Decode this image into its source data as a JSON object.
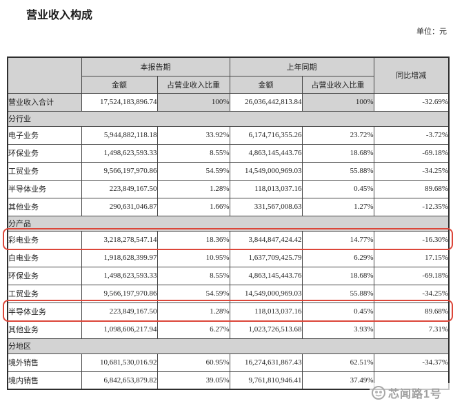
{
  "page": {
    "title": "营业收入构成",
    "unit_label": "单位：元"
  },
  "table": {
    "header": {
      "corner": "",
      "current_period": "本报告期",
      "prior_period": "上年同期",
      "yoy": "同比增减",
      "amount": "金额",
      "share": "占营业收入比重"
    },
    "rows": [
      {
        "type": "total",
        "label": "营业收入合计",
        "amount_cur": "17,524,183,896.74",
        "share_cur": "100%",
        "amount_prior": "26,036,442,813.84",
        "share_prior": "100%",
        "yoy": "-32.69%"
      },
      {
        "type": "section",
        "label": "分行业"
      },
      {
        "type": "data",
        "label": "电子业务",
        "amount_cur": "5,944,882,118.18",
        "share_cur": "33.92%",
        "amount_prior": "6,174,716,355.26",
        "share_prior": "23.72%",
        "yoy": "-3.72%"
      },
      {
        "type": "data",
        "label": "环保业务",
        "amount_cur": "1,498,623,593.33",
        "share_cur": "8.55%",
        "amount_prior": "4,863,145,443.76",
        "share_prior": "18.68%",
        "yoy": "-69.18%"
      },
      {
        "type": "data",
        "label": "工贸业务",
        "amount_cur": "9,566,197,970.86",
        "share_cur": "54.59%",
        "amount_prior": "14,549,000,969.03",
        "share_prior": "55.88%",
        "yoy": "-34.25%"
      },
      {
        "type": "data",
        "label": "半导体业务",
        "amount_cur": "223,849,167.50",
        "share_cur": "1.28%",
        "amount_prior": "118,013,037.16",
        "share_prior": "0.45%",
        "yoy": "89.68%"
      },
      {
        "type": "data",
        "label": "其他业务",
        "amount_cur": "290,631,046.87",
        "share_cur": "1.66%",
        "amount_prior": "331,567,008.63",
        "share_prior": "1.27%",
        "yoy": "-12.35%"
      },
      {
        "type": "section",
        "label": "分产品"
      },
      {
        "type": "data",
        "highlight": true,
        "label": "彩电业务",
        "amount_cur": "3,218,278,547.14",
        "share_cur": "18.36%",
        "amount_prior": "3,844,847,424.42",
        "share_prior": "14.77%",
        "yoy": "-16.30%"
      },
      {
        "type": "data",
        "label": "白电业务",
        "amount_cur": "1,918,628,399.97",
        "share_cur": "10.95%",
        "amount_prior": "1,637,709,425.79",
        "share_prior": "6.29%",
        "yoy": "17.15%"
      },
      {
        "type": "data",
        "label": "环保业务",
        "amount_cur": "1,498,623,593.33",
        "share_cur": "8.55%",
        "amount_prior": "4,863,145,443.76",
        "share_prior": "18.68%",
        "yoy": "-69.18%"
      },
      {
        "type": "data",
        "label": "工贸业务",
        "amount_cur": "9,566,197,970.86",
        "share_cur": "54.59%",
        "amount_prior": "14,549,000,969.03",
        "share_prior": "55.88%",
        "yoy": "-34.25%"
      },
      {
        "type": "data",
        "highlight": true,
        "label": "半导体业务",
        "amount_cur": "223,849,167.50",
        "share_cur": "1.28%",
        "amount_prior": "118,013,037.16",
        "share_prior": "0.45%",
        "yoy": "89.68%"
      },
      {
        "type": "data",
        "label": "其他业务",
        "amount_cur": "1,098,606,217.94",
        "share_cur": "6.27%",
        "amount_prior": "1,023,726,513.68",
        "share_prior": "3.93%",
        "yoy": "7.31%"
      },
      {
        "type": "section",
        "label": "分地区"
      },
      {
        "type": "data",
        "label": "境外销售",
        "amount_cur": "10,681,530,016.92",
        "share_cur": "60.95%",
        "amount_prior": "16,274,631,867.43",
        "share_prior": "62.51%",
        "yoy": "-34.37%"
      },
      {
        "type": "data",
        "label": "境内销售",
        "amount_cur": "6,842,653,879.82",
        "share_cur": "39.05%",
        "amount_prior": "9,761,810,946.41",
        "share_prior": "37.49%",
        "yoy": ""
      }
    ]
  },
  "annotations": {
    "highlight_color": "#dc4639",
    "header_bg_color": "#d3d3d3"
  },
  "watermark": {
    "text": "芯闻路1号",
    "icon": "logo-circle-icon",
    "color": "#9e9e9e"
  }
}
